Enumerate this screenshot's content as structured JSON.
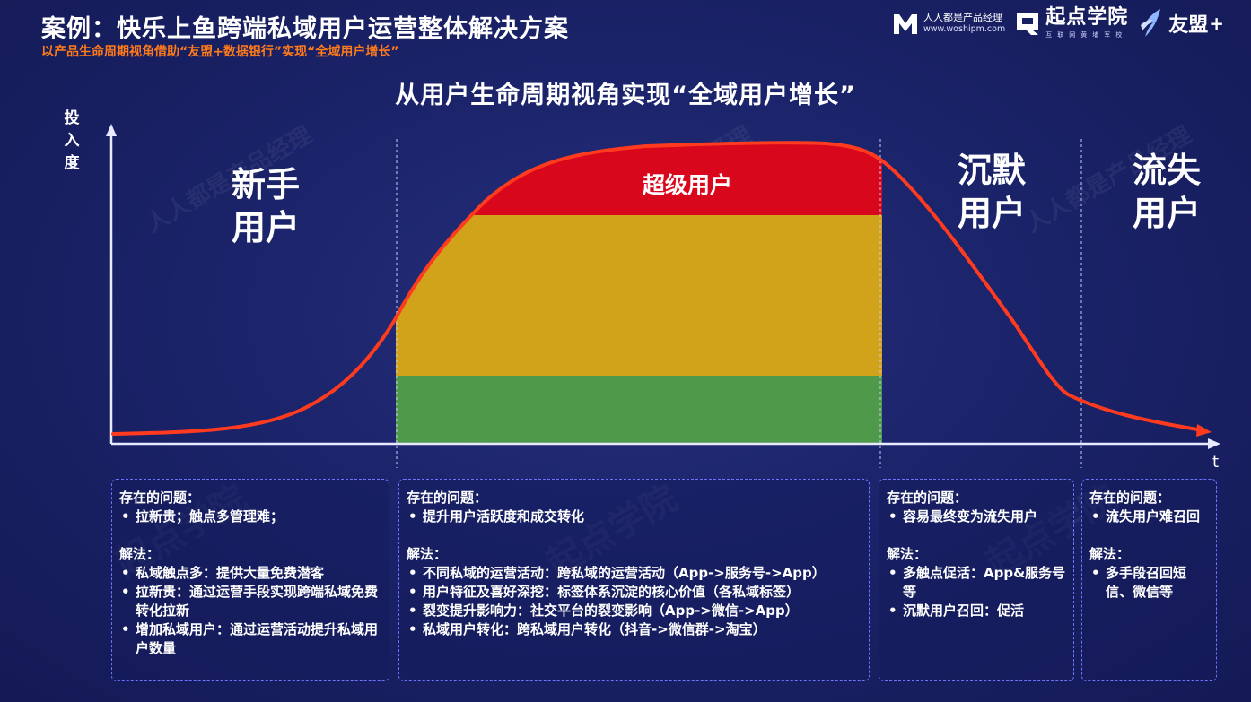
{
  "header": {
    "title": "案例：快乐上鱼跨端私域用户运营整体解决方案",
    "subtitle": "以产品生命周期视角借助“友盟+数据银行”实现“全域用户增长”"
  },
  "logos": {
    "woshipm_name": "人人都是产品经理",
    "woshipm_url": "www.woshipm.com",
    "qidian_name": "起点学院",
    "qidian_tagline": "互联网黄埔军校",
    "umeng_name": "友盟",
    "umeng_plus": "+"
  },
  "diagram": {
    "title": "从用户生命周期视角实现“全域用户增长”",
    "y_axis_label": "投入度",
    "x_axis_label": "t",
    "stages": [
      {
        "line1": "新手",
        "line2": "用户"
      },
      {
        "label": "超级用户"
      },
      {
        "line1": "沉默",
        "line2": "用户"
      },
      {
        "line1": "流失",
        "line2": "用户"
      }
    ]
  },
  "colors": {
    "curve": "#ff3b1f",
    "band_red": "#d9071c",
    "band_yellow": "#d1a31a",
    "band_green": "#4f9a4a",
    "box_border": "#6d74ff",
    "subtitle": "#ff7a1a"
  },
  "boxes": [
    {
      "problem_head": "存在的问题：",
      "problems": [
        "拉新贵；触点多管理难；"
      ],
      "solution_head": "解法：",
      "solutions": [
        "私域触点多：提供大量免费潜客",
        "拉新贵：通过运营手段实现跨端私域免费转化拉新",
        "增加私域用户：通过运营活动提升私域用户数量"
      ]
    },
    {
      "problem_head": "存在的问题：",
      "problems": [
        "提升用户活跃度和成交转化"
      ],
      "solution_head": "解法：",
      "solutions": [
        "不同私域的运营活动：跨私域的运营活动（App->服务号->App）",
        "用户特征及喜好深挖：标签体系沉淀的核心价值（各私域标签）",
        "裂变提升影响力：社交平台的裂变影响（App->微信->App）",
        "私域用户转化：跨私域用户转化（抖音->微信群->淘宝）"
      ]
    },
    {
      "problem_head": "存在的问题：",
      "problems": [
        "容易最终变为流失用户"
      ],
      "solution_head": "解法：",
      "solutions": [
        "多触点促活：App&服务号等",
        "沉默用户召回：促活"
      ]
    },
    {
      "problem_head": "存在的问题：",
      "problems": [
        "流失用户难召回"
      ],
      "solution_head": "解法：",
      "solutions": [
        "多手段召回短信、微信等"
      ]
    }
  ]
}
